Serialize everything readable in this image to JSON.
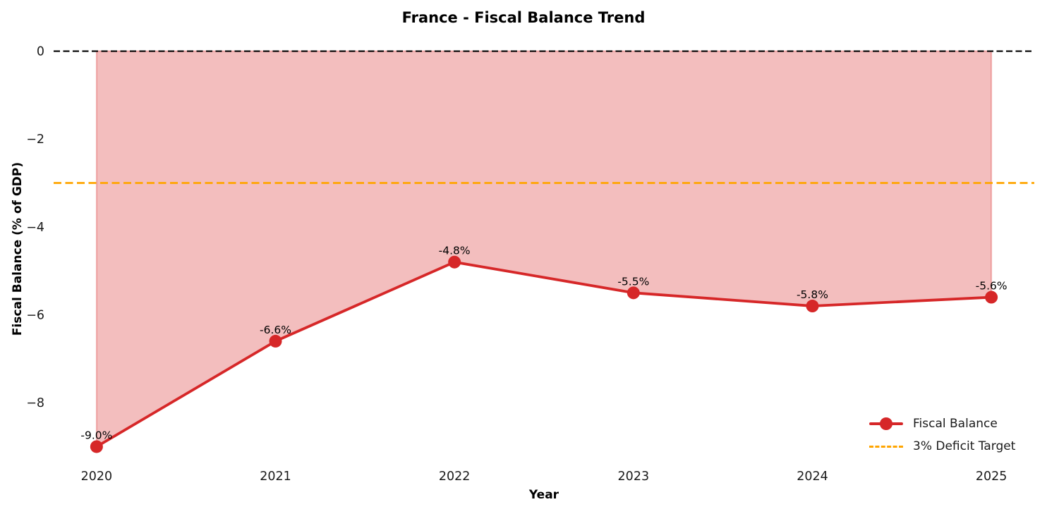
{
  "chart_data": {
    "type": "line",
    "title": "France - Fiscal Balance Trend",
    "xlabel": "Year",
    "ylabel": "Fiscal Balance (% of GDP)",
    "x": [
      2020,
      2021,
      2022,
      2023,
      2024,
      2025
    ],
    "series": [
      {
        "name": "Fiscal Balance",
        "values": [
          -9.0,
          -6.6,
          -4.8,
          -5.5,
          -5.8,
          -5.6
        ],
        "color": "#d62728",
        "marker": "circle"
      }
    ],
    "point_labels": [
      "-9.0%",
      "-6.6%",
      "-4.8%",
      "-5.5%",
      "-5.8%",
      "-5.6%"
    ],
    "fill": {
      "to": 0,
      "color": "#d62728",
      "alpha": 0.3
    },
    "reference_lines": [
      {
        "name": "zero-balance-line",
        "value": 0,
        "color": "#000000",
        "style": "dashed"
      },
      {
        "name": "deficit-target-line",
        "value": -3,
        "color": "#FFA500",
        "style": "dashed"
      }
    ],
    "legend": [
      {
        "label": "Fiscal Balance",
        "swatch": "line-marker",
        "color": "#d62728"
      },
      {
        "label": "3% Deficit Target",
        "swatch": "dashed-line",
        "color": "#FFA500"
      }
    ],
    "legend_position": "lower right",
    "xlim": [
      2019.76,
      2025.24
    ],
    "ylim": [
      -9.45,
      0.45
    ],
    "xticks": [
      2020,
      2021,
      2022,
      2023,
      2024,
      2025
    ],
    "yticks": [
      0,
      -2,
      -4,
      -6,
      -8
    ],
    "grid": false
  }
}
